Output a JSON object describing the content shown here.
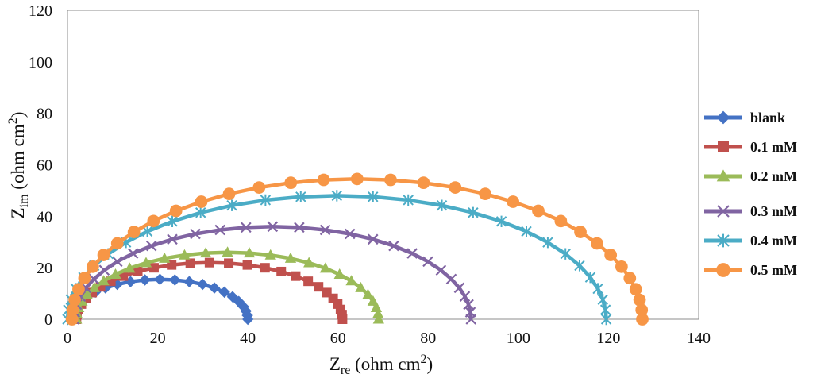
{
  "chart_data": {
    "type": "scatter",
    "title": "",
    "xlabel": {
      "main": "Z",
      "sub": "re",
      "unit": " (ohm cm",
      "sup": "2",
      "close": ")"
    },
    "ylabel": {
      "main": "Z",
      "sub": "im",
      "unit": " (ohm cm",
      "sup": "2",
      "close": ")"
    },
    "xlim": [
      0,
      140
    ],
    "ylim": [
      0,
      120
    ],
    "xticks": [
      "0",
      "20",
      "40",
      "60",
      "80",
      "100",
      "120",
      "140"
    ],
    "yticks": [
      "0",
      "20",
      "40",
      "60",
      "80",
      "100",
      "120"
    ],
    "grid": false,
    "legend_position": "right",
    "series": [
      {
        "name": "blank",
        "color": "#4472C4",
        "marker": "diamond",
        "r0": 1.0,
        "r1": 40.0,
        "peak": 15.5,
        "npts": 22
      },
      {
        "name": "0.1 mM",
        "color": "#C0504D",
        "marker": "square",
        "r0": 2.0,
        "r1": 61.0,
        "peak": 22.0,
        "npts": 26
      },
      {
        "name": "0.2 mM",
        "color": "#9BBB59",
        "marker": "triangle",
        "r0": 2.0,
        "r1": 69.0,
        "peak": 26.0,
        "npts": 26
      },
      {
        "name": "0.3 mM",
        "color": "#8064A2",
        "marker": "x",
        "r0": 1.5,
        "r1": 89.5,
        "peak": 36.0,
        "npts": 28
      },
      {
        "name": "0.4 mM",
        "color": "#4BACC6",
        "marker": "star",
        "r0": 0.0,
        "r1": 119.5,
        "peak": 48.0,
        "npts": 28
      },
      {
        "name": "0.5 mM",
        "color": "#F79646",
        "marker": "circle",
        "r0": 1.0,
        "r1": 127.5,
        "peak": 54.5,
        "npts": 32
      }
    ]
  }
}
